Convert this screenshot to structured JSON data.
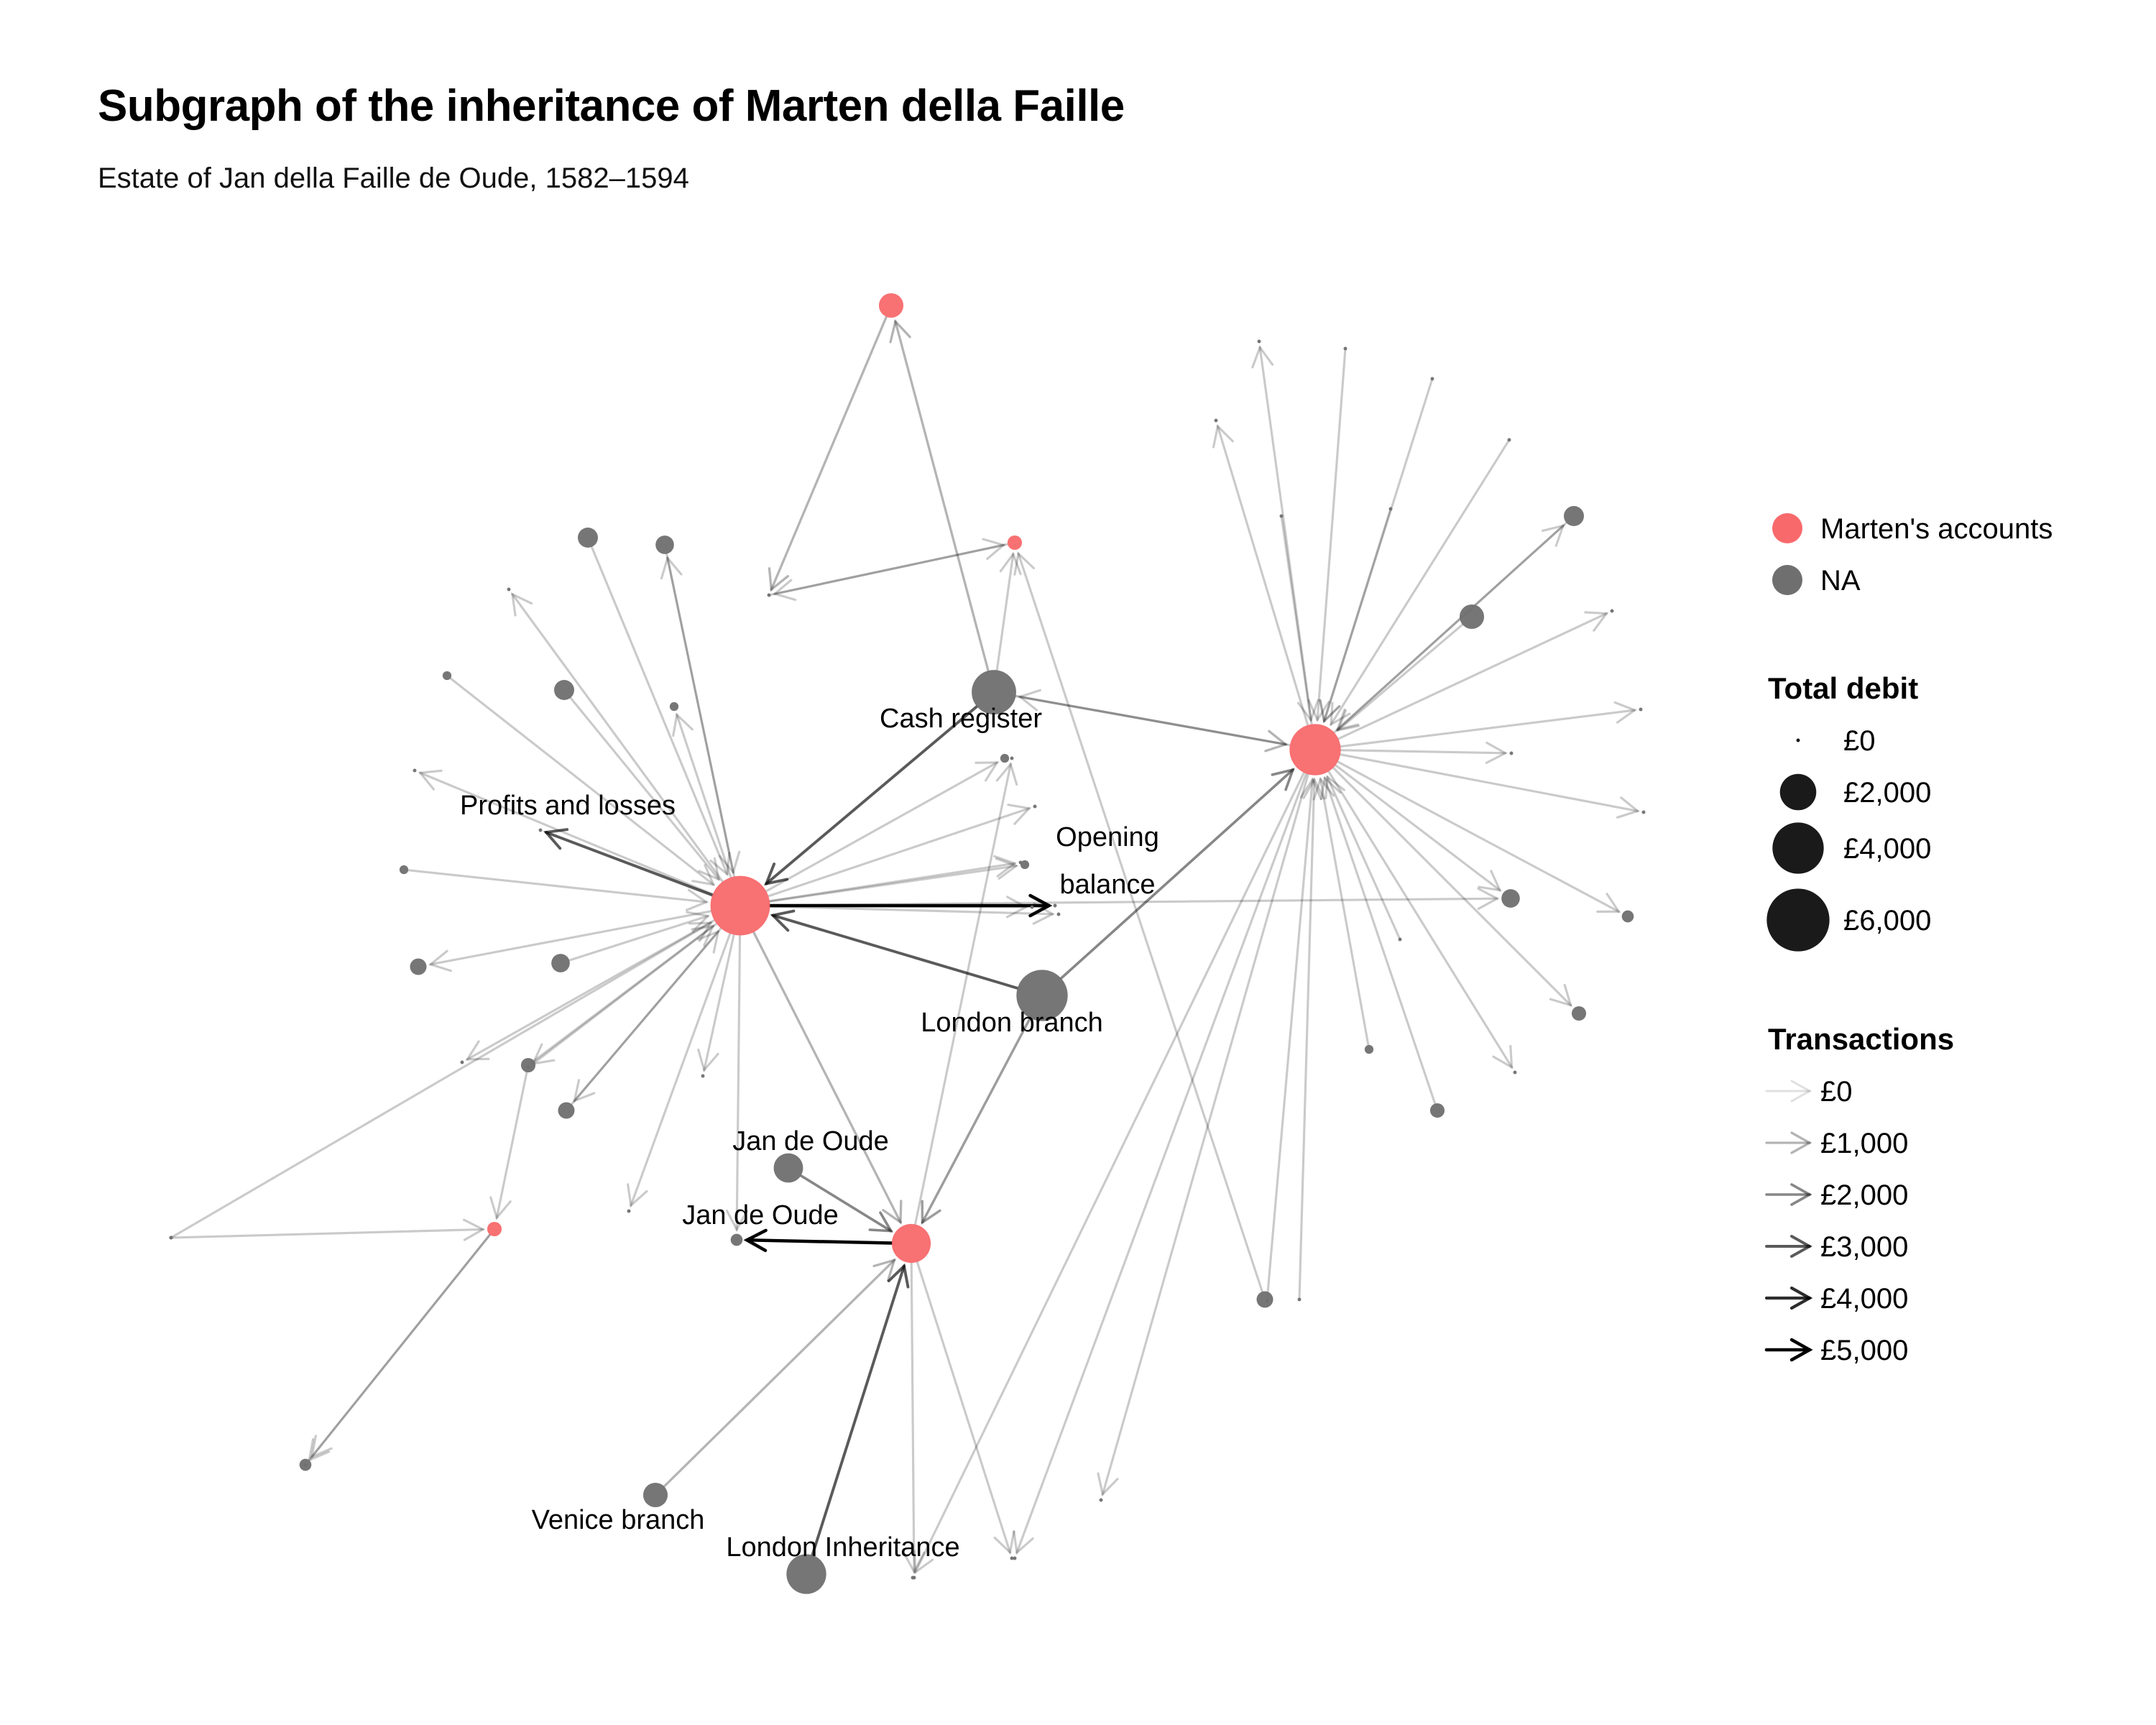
{
  "header": {
    "title": "Subgraph of the inheritance of Marten della Faille",
    "subtitle": "Estate of Jan della Faille de Oude, 1582–1594"
  },
  "colors": {
    "marten": "#f8696b",
    "na": "#6f6f6f",
    "edge": "#000000",
    "debit_key": "#1a1a1a"
  },
  "graph": {
    "nodes": [
      {
        "id": "A",
        "group": "marten",
        "debit": 5400
      },
      {
        "id": "B",
        "group": "marten",
        "debit": 2300
      },
      {
        "id": "C",
        "group": "marten",
        "debit": 4000
      },
      {
        "id": "D",
        "group": "marten",
        "debit": 900
      },
      {
        "id": "E",
        "group": "marten",
        "debit": 300
      },
      {
        "id": "F",
        "group": "marten",
        "debit": 300
      },
      {
        "id": "cash",
        "group": "na",
        "debit": 3000,
        "label": "Cash register"
      },
      {
        "id": "lb",
        "group": "na",
        "debit": 4000,
        "label": "London branch"
      },
      {
        "id": "pl",
        "group": "na",
        "debit": 0,
        "label": "Profits and losses"
      },
      {
        "id": "ob",
        "group": "na",
        "debit": 0,
        "label": "Opening\nbalance"
      },
      {
        "id": "jo1",
        "group": "na",
        "debit": 1300,
        "label": "Jan de Oude"
      },
      {
        "id": "jo2",
        "group": "na",
        "debit": 200,
        "label": "Jan de Oude"
      },
      {
        "id": "vb",
        "group": "na",
        "debit": 900,
        "label": "Venice branch"
      },
      {
        "id": "li",
        "group": "na",
        "debit": 2400,
        "label": "London Inheritance"
      },
      {
        "id": "g1",
        "group": "na",
        "debit": 0
      },
      {
        "id": "n1",
        "group": "na",
        "debit": 600
      },
      {
        "id": "n2",
        "group": "na",
        "debit": 500
      },
      {
        "id": "n3",
        "group": "na",
        "debit": 0
      },
      {
        "id": "n4",
        "group": "na",
        "debit": 100
      },
      {
        "id": "n5",
        "group": "na",
        "debit": 600
      },
      {
        "id": "n6",
        "group": "na",
        "debit": 100
      },
      {
        "id": "n7",
        "group": "na",
        "debit": 0
      },
      {
        "id": "n8",
        "group": "na",
        "debit": 100
      },
      {
        "id": "n9",
        "group": "na",
        "debit": 400
      },
      {
        "id": "n10",
        "group": "na",
        "debit": 0
      },
      {
        "id": "n11",
        "group": "na",
        "debit": 500
      },
      {
        "id": "n12",
        "group": "na",
        "debit": 0
      },
      {
        "id": "n13",
        "group": "na",
        "debit": 0
      },
      {
        "id": "n14",
        "group": "na",
        "debit": 400
      },
      {
        "id": "n15",
        "group": "na",
        "debit": 0
      },
      {
        "id": "n16",
        "group": "na",
        "debit": 100
      },
      {
        "id": "n17",
        "group": "na",
        "debit": 0
      },
      {
        "id": "n18",
        "group": "na",
        "debit": 0
      },
      {
        "id": "n19",
        "group": "na",
        "debit": 0
      },
      {
        "id": "n20",
        "group": "na",
        "debit": 100
      },
      {
        "id": "n21",
        "group": "na",
        "debit": 0
      },
      {
        "id": "n22",
        "group": "na",
        "debit": 0
      },
      {
        "id": "n23",
        "group": "na",
        "debit": 300
      },
      {
        "id": "m1",
        "group": "na",
        "debit": 0
      },
      {
        "id": "m2",
        "group": "na",
        "debit": 0
      },
      {
        "id": "m3",
        "group": "na",
        "debit": 0
      },
      {
        "id": "m4",
        "group": "na",
        "debit": 0
      },
      {
        "id": "m5",
        "group": "na",
        "debit": 0
      },
      {
        "id": "m6",
        "group": "na",
        "debit": 0
      },
      {
        "id": "m7",
        "group": "na",
        "debit": 0
      },
      {
        "id": "m8",
        "group": "na",
        "debit": 600
      },
      {
        "id": "m9",
        "group": "na",
        "debit": 900
      },
      {
        "id": "m10",
        "group": "na",
        "debit": 0
      },
      {
        "id": "m11",
        "group": "na",
        "debit": 0
      },
      {
        "id": "m12",
        "group": "na",
        "debit": 0
      },
      {
        "id": "m13",
        "group": "na",
        "debit": 0
      },
      {
        "id": "m14",
        "group": "na",
        "debit": 0
      },
      {
        "id": "m15",
        "group": "na",
        "debit": 200
      },
      {
        "id": "m16",
        "group": "na",
        "debit": 500
      },
      {
        "id": "m17",
        "group": "na",
        "debit": 300
      },
      {
        "id": "m18",
        "group": "na",
        "debit": 0
      },
      {
        "id": "m19",
        "group": "na",
        "debit": 100
      },
      {
        "id": "m20",
        "group": "na",
        "debit": 300
      },
      {
        "id": "m21",
        "group": "na",
        "debit": 0
      },
      {
        "id": "m22",
        "group": "na",
        "debit": 0
      },
      {
        "id": "m23",
        "group": "na",
        "debit": 0
      },
      {
        "id": "m24",
        "group": "na",
        "debit": 0
      },
      {
        "id": "m25",
        "group": "na",
        "debit": 0
      },
      {
        "id": "m26",
        "group": "na",
        "debit": 0
      },
      {
        "id": "p1",
        "group": "na",
        "debit": 0
      },
      {
        "id": "p2",
        "group": "na",
        "debit": 200
      },
      {
        "id": "p3",
        "group": "na",
        "debit": 0
      },
      {
        "id": "q1",
        "group": "na",
        "debit": 0
      },
      {
        "id": "q2",
        "group": "na",
        "debit": 0
      },
      {
        "id": "q3",
        "group": "na",
        "debit": 400
      }
    ],
    "edges": [
      {
        "from": "A",
        "to": "ob",
        "amount": 5000
      },
      {
        "from": "A",
        "to": "pl",
        "amount": 3000
      },
      {
        "from": "cash",
        "to": "A",
        "amount": 3000
      },
      {
        "from": "lb",
        "to": "A",
        "amount": 3000
      },
      {
        "from": "B",
        "to": "jo2",
        "amount": 5000
      },
      {
        "from": "li",
        "to": "B",
        "amount": 3000
      },
      {
        "from": "jo1",
        "to": "B",
        "amount": 2000
      },
      {
        "from": "lb",
        "to": "C",
        "amount": 2000
      },
      {
        "from": "lb",
        "to": "B",
        "amount": 1500
      },
      {
        "from": "vb",
        "to": "B",
        "amount": 1000
      },
      {
        "from": "A",
        "to": "B",
        "amount": 1000
      },
      {
        "from": "cash",
        "to": "C",
        "amount": 1000
      },
      {
        "from": "cash",
        "to": "E",
        "amount": 500
      },
      {
        "from": "cash",
        "to": "D",
        "amount": 1000
      },
      {
        "from": "D",
        "to": "g1",
        "amount": 1000
      },
      {
        "from": "g1",
        "to": "E",
        "amount": 500
      },
      {
        "from": "E",
        "to": "g1",
        "amount": 500
      },
      {
        "from": "q3",
        "to": "E",
        "amount": 500
      },
      {
        "from": "C",
        "to": "cash",
        "amount": 500
      },
      {
        "from": "A",
        "to": "jo2",
        "amount": 500
      },
      {
        "from": "A",
        "to": "m16",
        "amount": 500
      },
      {
        "from": "n1",
        "to": "A",
        "amount": 500
      },
      {
        "from": "n2",
        "to": "A",
        "amount": 500
      },
      {
        "from": "A",
        "to": "n2",
        "amount": 500
      },
      {
        "from": "A",
        "to": "n3",
        "amount": 500
      },
      {
        "from": "n4",
        "to": "A",
        "amount": 500
      },
      {
        "from": "n5",
        "to": "A",
        "amount": 500
      },
      {
        "from": "A",
        "to": "n6",
        "amount": 500
      },
      {
        "from": "A",
        "to": "n7",
        "amount": 500
      },
      {
        "from": "n8",
        "to": "A",
        "amount": 500
      },
      {
        "from": "A",
        "to": "n9",
        "amount": 500
      },
      {
        "from": "A",
        "to": "n10",
        "amount": 500
      },
      {
        "from": "n11",
        "to": "A",
        "amount": 500
      },
      {
        "from": "A",
        "to": "n12",
        "amount": 500
      },
      {
        "from": "A",
        "to": "n13",
        "amount": 500
      },
      {
        "from": "n14",
        "to": "A",
        "amount": 500
      },
      {
        "from": "A",
        "to": "n14",
        "amount": 500
      },
      {
        "from": "A",
        "to": "n15",
        "amount": 500
      },
      {
        "from": "A",
        "to": "n16",
        "amount": 500
      },
      {
        "from": "A",
        "to": "n17",
        "amount": 500
      },
      {
        "from": "A",
        "to": "n18",
        "amount": 500
      },
      {
        "from": "A",
        "to": "n19",
        "amount": 500
      },
      {
        "from": "A",
        "to": "n20",
        "amount": 500
      },
      {
        "from": "A",
        "to": "n21",
        "amount": 500
      },
      {
        "from": "n22",
        "to": "A",
        "amount": 500
      },
      {
        "from": "n23",
        "to": "A",
        "amount": 500
      },
      {
        "from": "n23",
        "to": "F",
        "amount": 500
      },
      {
        "from": "p1",
        "to": "F",
        "amount": 500
      },
      {
        "from": "F",
        "to": "p2",
        "amount": 500
      },
      {
        "from": "F",
        "to": "p3",
        "amount": 500
      },
      {
        "from": "B",
        "to": "q1",
        "amount": 500
      },
      {
        "from": "B",
        "to": "q2",
        "amount": 500
      },
      {
        "from": "B",
        "to": "m10",
        "amount": 500
      },
      {
        "from": "C",
        "to": "m1",
        "amount": 500
      },
      {
        "from": "m2",
        "to": "C",
        "amount": 500
      },
      {
        "from": "m3",
        "to": "C",
        "amount": 500
      },
      {
        "from": "C",
        "to": "m4",
        "amount": 500
      },
      {
        "from": "m5",
        "to": "C",
        "amount": 500
      },
      {
        "from": "m6",
        "to": "C",
        "amount": 500
      },
      {
        "from": "m7",
        "to": "C",
        "amount": 500
      },
      {
        "from": "m8",
        "to": "C",
        "amount": 500
      },
      {
        "from": "C",
        "to": "m8",
        "amount": 500
      },
      {
        "from": "m9",
        "to": "C",
        "amount": 500
      },
      {
        "from": "C",
        "to": "m11",
        "amount": 500
      },
      {
        "from": "C",
        "to": "m12",
        "amount": 500
      },
      {
        "from": "C",
        "to": "m13",
        "amount": 500
      },
      {
        "from": "C",
        "to": "m14",
        "amount": 500
      },
      {
        "from": "C",
        "to": "m15",
        "amount": 500
      },
      {
        "from": "C",
        "to": "m16",
        "amount": 500
      },
      {
        "from": "C",
        "to": "m17",
        "amount": 500
      },
      {
        "from": "m18",
        "to": "C",
        "amount": 500
      },
      {
        "from": "m19",
        "to": "C",
        "amount": 500
      },
      {
        "from": "m20",
        "to": "C",
        "amount": 500
      },
      {
        "from": "C",
        "to": "m21",
        "amount": 500
      },
      {
        "from": "m22",
        "to": "C",
        "amount": 500
      },
      {
        "from": "m23",
        "to": "C",
        "amount": 500
      },
      {
        "from": "C",
        "to": "m24",
        "amount": 500
      },
      {
        "from": "C",
        "to": "m25",
        "amount": 500
      },
      {
        "from": "C",
        "to": "m26",
        "amount": 500
      }
    ]
  },
  "legend": {
    "group_items": [
      {
        "label": "Marten's accounts",
        "color": "#f8696b"
      },
      {
        "label": "NA",
        "color": "#6f6f6f"
      }
    ],
    "debit_title": "Total debit",
    "debit_items": [
      {
        "label": "£0",
        "value": 0
      },
      {
        "label": "£2,000",
        "value": 2000
      },
      {
        "label": "£4,000",
        "value": 4000
      },
      {
        "label": "£6,000",
        "value": 6000
      }
    ],
    "tx_title": "Transactions",
    "tx_items": [
      {
        "label": "£0",
        "value": 0
      },
      {
        "label": "£1,000",
        "value": 1000
      },
      {
        "label": "£2,000",
        "value": 2000
      },
      {
        "label": "£3,000",
        "value": 3000
      },
      {
        "label": "£4,000",
        "value": 4000
      },
      {
        "label": "£5,000",
        "value": 5000
      }
    ]
  }
}
